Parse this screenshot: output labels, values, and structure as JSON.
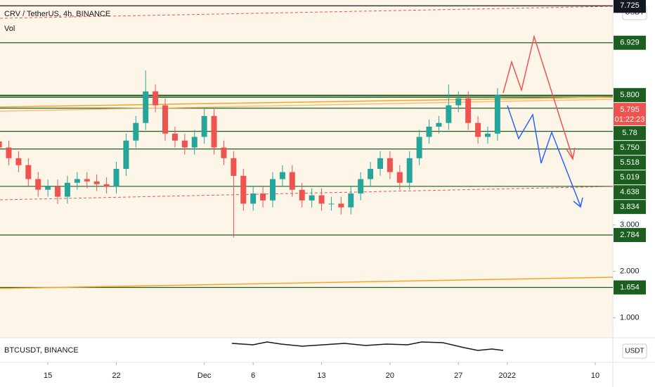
{
  "chart_data": {
    "type": "candlestick",
    "title": "CRV / TetherUS, 4h, BINANCE",
    "indicator": "Vol",
    "currency": "USDT",
    "x": [
      10,
      11,
      12,
      13,
      14,
      15,
      16,
      17,
      18,
      19,
      20,
      21,
      22,
      23,
      24,
      25,
      26,
      27,
      28,
      29,
      30,
      31,
      32,
      33,
      34,
      35,
      36,
      37,
      38,
      39,
      40,
      41,
      42,
      43,
      44,
      45,
      46,
      47,
      48,
      49,
      50,
      51,
      52,
      53,
      54,
      55,
      56,
      57,
      58,
      59,
      60,
      61
    ],
    "open": [
      4.8,
      4.67,
      4.44,
      4.29,
      3.99,
      3.76,
      3.83,
      3.61,
      3.91,
      3.99,
      3.94,
      3.88,
      3.83,
      4.21,
      4.82,
      5.2,
      5.88,
      5.58,
      4.97,
      4.82,
      4.67,
      4.9,
      5.35,
      4.67,
      4.44,
      4.06,
      3.46,
      3.68,
      3.53,
      3.99,
      4.14,
      3.76,
      3.53,
      3.64,
      3.46,
      3.46,
      3.38,
      3.68,
      3.99,
      4.21,
      4.44,
      4.14,
      3.91,
      4.44,
      4.9,
      5.12,
      5.2,
      5.58,
      5.73,
      5.2,
      4.9,
      4.97
    ],
    "high": [
      4.95,
      4.82,
      4.59,
      4.44,
      4.14,
      3.98,
      3.98,
      4.06,
      4.14,
      4.14,
      4.09,
      4.03,
      4.36,
      4.97,
      5.35,
      6.33,
      6.03,
      5.73,
      5.12,
      4.97,
      5.05,
      5.5,
      5.5,
      4.82,
      4.59,
      4.21,
      3.83,
      3.83,
      4.14,
      4.29,
      4.29,
      3.91,
      3.79,
      3.79,
      3.61,
      3.61,
      3.83,
      4.14,
      4.36,
      4.59,
      4.59,
      4.29,
      4.59,
      5.05,
      5.27,
      5.35,
      6.03,
      5.88,
      5.88,
      5.35,
      5.12,
      5.95
    ],
    "low": [
      4.52,
      4.29,
      4.14,
      3.84,
      3.61,
      3.61,
      3.45,
      3.46,
      3.76,
      3.79,
      3.73,
      3.68,
      3.68,
      4.06,
      4.67,
      5.05,
      5.43,
      4.82,
      4.67,
      4.52,
      4.52,
      4.75,
      4.52,
      4.29,
      2.73,
      3.31,
      3.31,
      3.38,
      3.38,
      3.84,
      3.61,
      3.38,
      3.38,
      3.31,
      3.31,
      3.23,
      3.23,
      3.53,
      3.84,
      4.06,
      3.99,
      3.76,
      3.76,
      4.29,
      4.75,
      4.97,
      5.05,
      5.43,
      5.05,
      4.75,
      4.75,
      4.82
    ],
    "close": [
      4.67,
      4.44,
      4.29,
      3.99,
      3.76,
      3.83,
      3.61,
      3.91,
      3.99,
      3.94,
      3.88,
      3.83,
      4.21,
      4.82,
      5.2,
      5.88,
      5.58,
      4.97,
      4.82,
      4.67,
      4.9,
      5.35,
      4.67,
      4.44,
      4.06,
      3.46,
      3.68,
      3.53,
      3.99,
      4.14,
      3.76,
      3.53,
      3.64,
      3.46,
      3.46,
      3.38,
      3.68,
      3.99,
      4.21,
      4.44,
      4.14,
      3.91,
      4.44,
      4.9,
      5.12,
      5.2,
      5.58,
      5.73,
      5.2,
      4.9,
      4.97,
      5.8
    ],
    "up_color": "#26a69a",
    "down_color": "#ef5350",
    "ylim": [
      0.57,
      7.85
    ],
    "yticks": [
      {
        "value": 1,
        "label": "1.000"
      },
      {
        "value": 2,
        "label": "2.000"
      },
      {
        "value": 3,
        "label": "3.000"
      }
    ],
    "xlim": [
      10.1,
      72.8
    ],
    "xticks": [
      15,
      22,
      {
        "value": 31,
        "label": "Dec"
      },
      {
        "value": 36,
        "label": "6"
      },
      {
        "value": 43,
        "label": "13"
      },
      {
        "value": 50,
        "label": "20"
      },
      {
        "value": 57,
        "label": "27"
      },
      {
        "value": 62,
        "label": "2022"
      },
      {
        "value": 71,
        "label": "10"
      }
    ],
    "levels": [
      7.725,
      6.929,
      {
        "value": 5.8,
        "label": "5.800"
      },
      5.78,
      {
        "value": 5.75,
        "label": "5.750"
      },
      5.518,
      5.019,
      4.638,
      3.834,
      2.784,
      1.654
    ],
    "level_color": "#1b5e20",
    "last_price": 5.795,
    "countdown": "01:22:23",
    "compare_symbol": "BTCUSDT, BINANCE",
    "compare_currency": "USDT"
  }
}
